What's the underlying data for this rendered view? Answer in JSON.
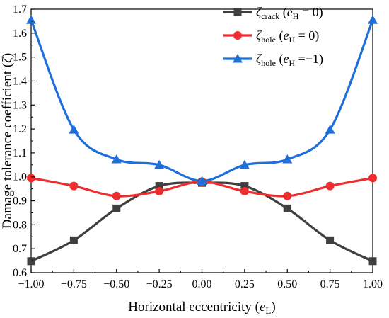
{
  "chart_data": {
    "type": "line",
    "xlabel": "Horizontal eccentricity (e_L)",
    "xlabel_parts": {
      "before": "Horizontal eccentricity (",
      "var": "e",
      "sub": "L",
      "after": ")"
    },
    "ylabel": "Damage tolerance coefficient (ζ)",
    "ylabel_parts": {
      "before": "Damage tolerance coefficient (",
      "var": "ζ",
      "after": ")"
    },
    "xlim": [
      -1.0,
      1.0
    ],
    "ylim": [
      0.6,
      1.7
    ],
    "xticks": [
      "-1.00",
      "-0.75",
      "-0.50",
      "-0.25",
      "0.00",
      "0.25",
      "0.50",
      "0.75",
      "1.00"
    ],
    "yticks": [
      "0.6",
      "0.7",
      "0.8",
      "0.9",
      "1.0",
      "1.1",
      "1.2",
      "1.3",
      "1.4",
      "1.5",
      "1.6",
      "1.7"
    ],
    "grid": false,
    "legend_position": "top-right",
    "x": [
      -1.0,
      -0.75,
      -0.5,
      -0.25,
      0.0,
      0.25,
      0.5,
      0.75,
      1.0
    ],
    "series": [
      {
        "name": "ζ_crack (e_H = 0)",
        "legend": {
          "sym": "ζ",
          "sub": "crack",
          "open": " (",
          "var": "e",
          "vsub": "H",
          "rest": " = 0)"
        },
        "color": "#3f3f3f",
        "marker": "square",
        "values": [
          0.648,
          0.735,
          0.868,
          0.962,
          0.975,
          0.962,
          0.868,
          0.735,
          0.648
        ]
      },
      {
        "name": "ζ_hole (e_H = 0)",
        "legend": {
          "sym": "ζ",
          "sub": "hole",
          "open": " (",
          "var": "e",
          "vsub": "H",
          "rest": " = 0)"
        },
        "color": "#ee2e2e",
        "marker": "circle",
        "values": [
          0.995,
          0.962,
          0.92,
          0.94,
          0.98,
          0.94,
          0.92,
          0.962,
          0.995
        ]
      },
      {
        "name": "ζ_hole (e_H = −1)",
        "legend": {
          "sym": "ζ",
          "sub": "hole",
          "open": " (",
          "var": "e",
          "vsub": "H",
          "rest": " =−1)"
        },
        "color": "#1e6fd9",
        "marker": "triangle",
        "values": [
          1.655,
          1.197,
          1.073,
          1.05,
          0.983,
          1.05,
          1.073,
          1.197,
          1.655
        ]
      }
    ]
  }
}
